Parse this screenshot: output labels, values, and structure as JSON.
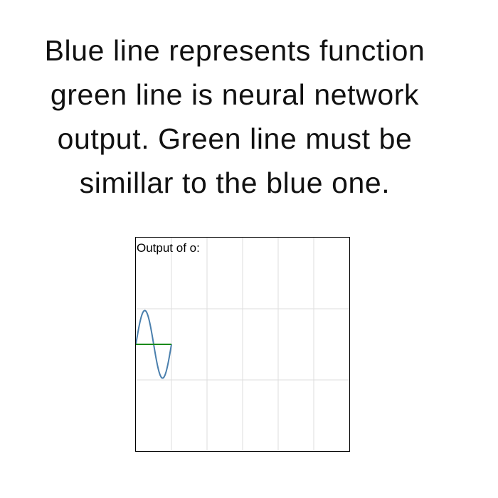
{
  "caption": {
    "lines": [
      "Blue line represents function",
      "green line is neural network",
      "output. Green line must be",
      "simillar to the blue one."
    ]
  },
  "chart_data": {
    "type": "line",
    "title": "Output of o:",
    "xlabel": "",
    "ylabel": "",
    "grid": true,
    "xlim": [
      0,
      6
    ],
    "ylim": [
      -3,
      3
    ],
    "series": [
      {
        "color": "#4a7fad",
        "x": [
          0,
          0.1,
          0.2,
          0.3,
          0.4,
          0.5,
          0.6,
          0.7,
          0.8,
          0.9,
          1.0
        ],
        "y": [
          0,
          0.59,
          0.95,
          0.95,
          0.59,
          0,
          -0.59,
          -0.95,
          -0.95,
          -0.59,
          0
        ]
      },
      {
        "color": "#1a8a1a",
        "x": [
          0,
          1.0
        ],
        "y": [
          0,
          0
        ]
      }
    ]
  }
}
